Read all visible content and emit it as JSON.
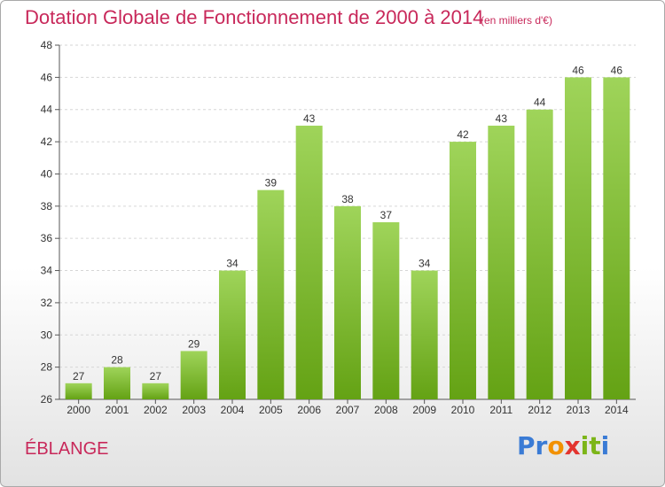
{
  "title": "Dotation Globale de Fonctionnement de 2000 à 2014",
  "subtitle": "(en milliers d'€)",
  "commune": "ÉBLANGE",
  "logo": {
    "text": "Proxiti",
    "letters": [
      "P",
      "r",
      "o",
      "x",
      "i",
      "t",
      "i"
    ],
    "colors": [
      "#3a7bd5",
      "#3a7bd5",
      "#f29100",
      "#e3342f",
      "#7cb518",
      "#7cb518",
      "#3a7bd5"
    ]
  },
  "colors": {
    "accent": "#c8285a",
    "bar_top": "#9fd45a",
    "bar_bottom": "#64a214"
  },
  "chart_data": {
    "type": "bar",
    "title": "Dotation Globale de Fonctionnement de 2000 à 2014",
    "subtitle": "(en milliers d'€)",
    "categories": [
      "2000",
      "2001",
      "2002",
      "2003",
      "2004",
      "2005",
      "2006",
      "2007",
      "2008",
      "2009",
      "2010",
      "2011",
      "2012",
      "2013",
      "2014"
    ],
    "values": [
      27,
      28,
      27,
      29,
      34,
      39,
      43,
      38,
      37,
      34,
      42,
      43,
      44,
      46,
      46
    ],
    "ylim": [
      26,
      48
    ],
    "yticks": [
      26,
      28,
      30,
      32,
      34,
      36,
      38,
      40,
      42,
      44,
      46,
      48
    ],
    "grid": "horizontal",
    "xlabel": "",
    "ylabel": ""
  }
}
